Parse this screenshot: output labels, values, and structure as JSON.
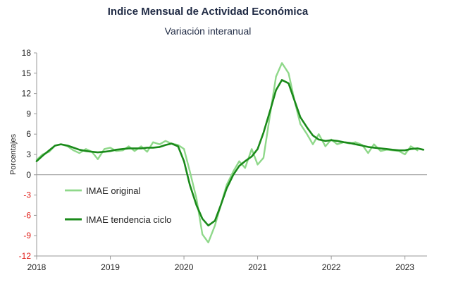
{
  "chart_data": {
    "type": "line",
    "title": "Indice Mensual de  Actividad Económica",
    "subtitle": "Variación interanual",
    "ylabel": "Porcentajes",
    "xlabel": "",
    "ylim": [
      -12,
      18
    ],
    "yticks": [
      18,
      15,
      12,
      9,
      6,
      3,
      0,
      -3,
      -6,
      -9,
      -12
    ],
    "xlim": [
      2018,
      2023.3
    ],
    "xticks": [
      2018,
      2019,
      2020,
      2021,
      2022,
      2023
    ],
    "legend_position": "bottom-left",
    "colors": {
      "original": "#8fd88a",
      "trend": "#1a8a1a",
      "positive_tick": "#222222",
      "negative_tick": "#e0201b",
      "zero_line": "#999999"
    },
    "series": [
      {
        "name": "IMAE original",
        "x": [
          2018.0,
          2018.08,
          2018.17,
          2018.25,
          2018.33,
          2018.42,
          2018.5,
          2018.58,
          2018.67,
          2018.75,
          2018.83,
          2018.92,
          2019.0,
          2019.08,
          2019.17,
          2019.25,
          2019.33,
          2019.42,
          2019.5,
          2019.58,
          2019.67,
          2019.75,
          2019.83,
          2019.92,
          2020.0,
          2020.08,
          2020.17,
          2020.25,
          2020.33,
          2020.42,
          2020.5,
          2020.58,
          2020.67,
          2020.75,
          2020.83,
          2020.92,
          2021.0,
          2021.08,
          2021.17,
          2021.25,
          2021.33,
          2021.42,
          2021.5,
          2021.58,
          2021.67,
          2021.75,
          2021.83,
          2021.92,
          2022.0,
          2022.08,
          2022.17,
          2022.25,
          2022.33,
          2022.42,
          2022.5,
          2022.58,
          2022.67,
          2022.75,
          2022.83,
          2022.92,
          2023.0,
          2023.08,
          2023.17
        ],
        "values": [
          2.2,
          3.0,
          3.4,
          4.3,
          4.5,
          4.2,
          3.6,
          3.2,
          3.8,
          3.4,
          2.3,
          3.8,
          4.0,
          3.5,
          3.6,
          4.2,
          3.5,
          4.2,
          3.4,
          4.8,
          4.5,
          5.0,
          4.6,
          4.4,
          3.8,
          0.5,
          -3.5,
          -8.8,
          -10.0,
          -7.5,
          -4.5,
          -1.5,
          0.5,
          2.0,
          1.0,
          3.8,
          1.5,
          2.5,
          9.0,
          14.5,
          16.5,
          15.0,
          11.0,
          7.5,
          6.0,
          4.5,
          6.0,
          4.2,
          5.2,
          4.5,
          4.8,
          4.6,
          4.8,
          4.4,
          3.2,
          4.5,
          3.5,
          3.7,
          3.6,
          3.5,
          3.0,
          4.2,
          3.6
        ]
      },
      {
        "name": "IMAE tendencia ciclo",
        "x": [
          2018.0,
          2018.08,
          2018.17,
          2018.25,
          2018.33,
          2018.42,
          2018.5,
          2018.58,
          2018.67,
          2018.75,
          2018.83,
          2018.92,
          2019.0,
          2019.08,
          2019.17,
          2019.25,
          2019.33,
          2019.42,
          2019.5,
          2019.58,
          2019.67,
          2019.75,
          2019.83,
          2019.92,
          2020.0,
          2020.08,
          2020.17,
          2020.25,
          2020.33,
          2020.42,
          2020.5,
          2020.58,
          2020.67,
          2020.75,
          2020.83,
          2020.92,
          2021.0,
          2021.08,
          2021.17,
          2021.25,
          2021.33,
          2021.42,
          2021.5,
          2021.58,
          2021.67,
          2021.75,
          2021.83,
          2021.92,
          2022.0,
          2022.08,
          2022.17,
          2022.25,
          2022.33,
          2022.42,
          2022.5,
          2022.58,
          2022.67,
          2022.75,
          2022.83,
          2022.92,
          2023.0,
          2023.08,
          2023.17,
          2023.25
        ],
        "values": [
          2.0,
          2.8,
          3.6,
          4.3,
          4.5,
          4.3,
          4.0,
          3.7,
          3.5,
          3.4,
          3.3,
          3.4,
          3.5,
          3.7,
          3.8,
          3.9,
          3.9,
          3.9,
          4.0,
          4.0,
          4.1,
          4.4,
          4.6,
          4.2,
          2.0,
          -1.5,
          -4.5,
          -6.5,
          -7.5,
          -6.8,
          -4.5,
          -2.0,
          0.0,
          1.3,
          2.0,
          2.7,
          3.8,
          6.2,
          9.5,
          12.5,
          14.0,
          13.5,
          11.0,
          8.5,
          7.0,
          5.8,
          5.2,
          5.0,
          5.1,
          5.0,
          4.8,
          4.7,
          4.5,
          4.3,
          4.1,
          4.0,
          3.9,
          3.8,
          3.7,
          3.6,
          3.6,
          3.8,
          3.9,
          3.7
        ]
      }
    ]
  }
}
